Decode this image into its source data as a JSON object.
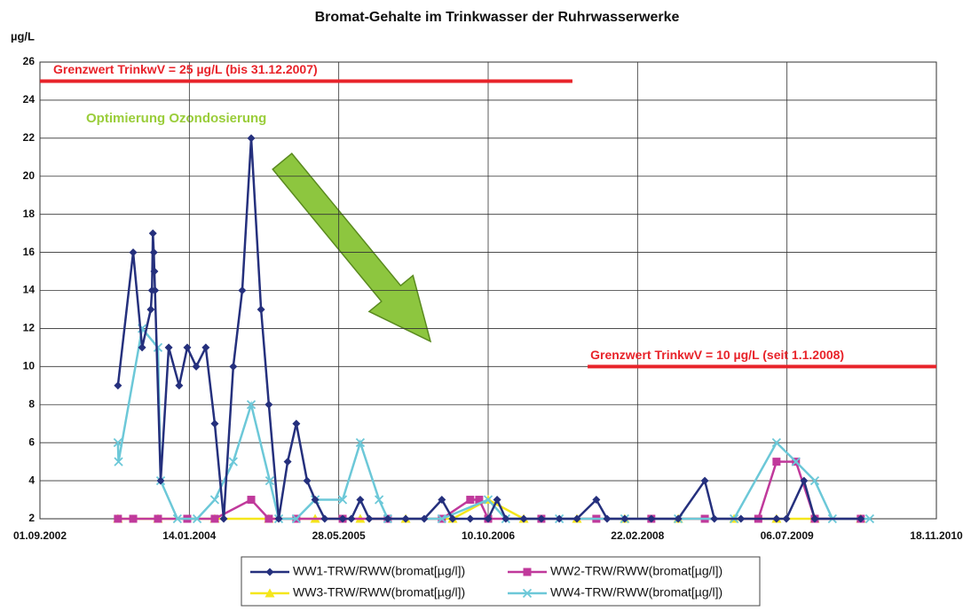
{
  "chart_data": {
    "type": "line",
    "title": "Bromat-Gehalte im Trinkwasser der Ruhrwasserwerke",
    "y_label": "µg/L",
    "xlim": [
      "2002-09-01",
      "2010-11-18"
    ],
    "xticks": [
      {
        "value": "2002-09-01",
        "label": "01.09.2002"
      },
      {
        "value": "2004-01-14",
        "label": "14.01.2004"
      },
      {
        "value": "2005-05-28",
        "label": "28.05.2005"
      },
      {
        "value": "2006-10-10",
        "label": "10.10.2006"
      },
      {
        "value": "2008-02-22",
        "label": "22.02.2008"
      },
      {
        "value": "2009-07-06",
        "label": "06.07.2009"
      },
      {
        "value": "2010-11-18",
        "label": "18.11.2010"
      }
    ],
    "ylim": [
      2,
      26
    ],
    "yticks": [
      2,
      4,
      6,
      8,
      10,
      12,
      14,
      16,
      18,
      20,
      22,
      24,
      26
    ],
    "grid": true,
    "legend": "bottom",
    "limits": [
      {
        "label": "Grenzwert TrinkwV = 25 µg/L (bis 31.12.2007)",
        "value": 25,
        "from": "2002-09-01",
        "to": "2007-07-19",
        "color": "#e8232a"
      },
      {
        "label": "Grenzwert TrinkwV = 10 µg/L (seit 1.1.2008)",
        "value": 10,
        "from": "2007-09-08",
        "to": "2010-11-18",
        "color": "#e8232a"
      }
    ],
    "annotations": [
      {
        "text": "Optimierung Ozondosierung",
        "color": "#9acd3a"
      }
    ],
    "series": [
      {
        "name": "WW1-TRW/RWW(bromat[µg/l])",
        "color": "#25307d",
        "marker": "diamond",
        "x": [
          "2003-05-20",
          "2003-07-10",
          "2003-08-09",
          "2003-09-07",
          "2003-09-11",
          "2003-09-14",
          "2003-09-17",
          "2003-09-19",
          "2003-09-21",
          "2003-10-10",
          "2003-11-06",
          "2003-12-11",
          "2004-01-07",
          "2004-02-06",
          "2004-03-09",
          "2004-04-08",
          "2004-05-08",
          "2004-06-09",
          "2004-07-09",
          "2004-08-08",
          "2004-09-10",
          "2004-10-06",
          "2004-11-08",
          "2004-12-08",
          "2005-01-06",
          "2005-02-11",
          "2005-03-10",
          "2005-04-11",
          "2005-06-10",
          "2005-07-09",
          "2005-08-08",
          "2005-09-07",
          "2005-11-08",
          "2006-01-07",
          "2006-03-10",
          "2006-05-08",
          "2006-06-13",
          "2006-08-11",
          "2006-10-10",
          "2006-11-09",
          "2006-12-08",
          "2007-02-06",
          "2007-04-06",
          "2007-06-05",
          "2007-08-03",
          "2007-10-07",
          "2007-11-12",
          "2008-01-10",
          "2008-04-08",
          "2008-07-07",
          "2008-10-04",
          "2008-11-05",
          "2009-02-02",
          "2009-06-01",
          "2009-07-04",
          "2009-09-01",
          "2009-10-07",
          "2010-03-10"
        ],
        "values": [
          9,
          16,
          11,
          13,
          14,
          17,
          16,
          15,
          14,
          4,
          11,
          9,
          11,
          10,
          11,
          7,
          2,
          10,
          14,
          22,
          13,
          8,
          2,
          5,
          7,
          4,
          3,
          2,
          2,
          2,
          3,
          2,
          2,
          2,
          2,
          3,
          2,
          2,
          2,
          3,
          2,
          2,
          2,
          2,
          2,
          3,
          2,
          2,
          2,
          2,
          4,
          2,
          2,
          2,
          2,
          4,
          2,
          2
        ]
      },
      {
        "name": "WW2-TRW/RWW(bromat[µg/l])",
        "color": "#c0399b",
        "marker": "square",
        "x": [
          "2003-05-20",
          "2003-07-10",
          "2003-10-01",
          "2004-01-07",
          "2004-04-08",
          "2004-08-08",
          "2004-10-06",
          "2005-01-06",
          "2005-06-10",
          "2005-11-08",
          "2006-05-08",
          "2006-08-11",
          "2006-09-10",
          "2006-10-10",
          "2007-04-06",
          "2007-10-07",
          "2008-04-08",
          "2008-10-04",
          "2009-04-01",
          "2009-06-01",
          "2009-08-05",
          "2009-10-07",
          "2010-03-10"
        ],
        "values": [
          2,
          2,
          2,
          2,
          2,
          3,
          2,
          2,
          2,
          2,
          2,
          3,
          3,
          2,
          2,
          2,
          2,
          2,
          2,
          5,
          5,
          2,
          2
        ]
      },
      {
        "name": "WW3-TRW/RWW(bromat[µg/l])",
        "color": "#f5e61b",
        "marker": "triangle",
        "x": [
          "2003-05-20",
          "2003-10-01",
          "2004-04-08",
          "2004-10-06",
          "2005-03-10",
          "2005-08-08",
          "2006-01-07",
          "2006-06-13",
          "2006-10-10",
          "2007-02-06",
          "2007-08-03",
          "2008-01-10",
          "2008-07-07",
          "2009-01-10",
          "2009-06-01",
          "2009-10-07",
          "2010-03-10"
        ],
        "values": [
          2,
          2,
          2,
          2,
          2,
          2,
          2,
          2,
          3,
          2,
          2,
          2,
          2,
          2,
          2,
          2,
          2
        ]
      },
      {
        "name": "WW4-TRW/RWW(bromat[µg/l])",
        "color": "#6cc8d8",
        "marker": "x",
        "x": [
          "2003-05-20",
          "2003-05-22",
          "2003-08-09",
          "2003-10-01",
          "2003-10-10",
          "2003-12-05",
          "2004-02-09",
          "2004-04-08",
          "2004-06-09",
          "2004-08-08",
          "2004-10-09",
          "2004-11-08",
          "2005-01-06",
          "2005-03-10",
          "2005-06-10",
          "2005-08-08",
          "2005-10-10",
          "2005-11-08",
          "2006-05-08",
          "2006-10-10",
          "2006-12-08",
          "2007-06-05",
          "2008-01-10",
          "2008-07-07",
          "2009-01-10",
          "2009-06-01",
          "2009-08-05",
          "2009-10-07",
          "2009-12-05",
          "2010-04-09"
        ],
        "values": [
          6,
          5,
          12,
          11,
          4,
          2,
          2,
          3,
          5,
          8,
          4,
          2,
          2,
          3,
          3,
          6,
          3,
          2,
          2,
          3,
          2,
          2,
          2,
          2,
          2,
          6,
          5,
          4,
          2,
          2
        ]
      }
    ]
  }
}
